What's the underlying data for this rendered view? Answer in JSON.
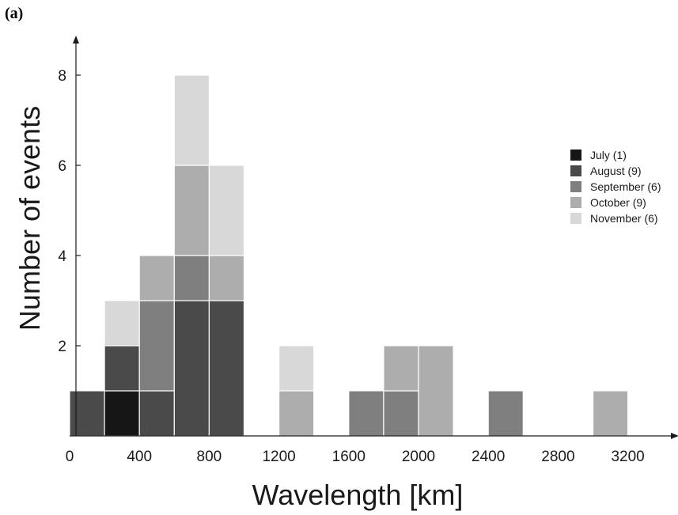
{
  "panel_label": "(a)",
  "chart_data": {
    "type": "bar",
    "stacked": true,
    "title": "",
    "xlabel": "Wavelength [km]",
    "ylabel": "Number of events",
    "xlim": [
      0,
      3400
    ],
    "ylim": [
      0,
      8.6
    ],
    "bin_width": 200,
    "x_ticks": [
      0,
      400,
      800,
      1200,
      1600,
      2000,
      2400,
      2800,
      3200
    ],
    "y_ticks": [
      2,
      4,
      6,
      8
    ],
    "bin_starts": [
      0,
      200,
      400,
      600,
      800,
      1200,
      1600,
      1800,
      2000,
      2400,
      3000
    ],
    "series": [
      {
        "name": "July (1)",
        "color": "#161616",
        "values": [
          0,
          1,
          0,
          0,
          0,
          0,
          0,
          0,
          0,
          0,
          0
        ]
      },
      {
        "name": "August (9)",
        "color": "#4a4a4a",
        "values": [
          1,
          1,
          1,
          3,
          3,
          0,
          0,
          0,
          0,
          0,
          0
        ]
      },
      {
        "name": "September (6)",
        "color": "#7f7f7f",
        "values": [
          0,
          0,
          2,
          1,
          0,
          0,
          1,
          1,
          0,
          1,
          0
        ]
      },
      {
        "name": "October (9)",
        "color": "#adadad",
        "values": [
          0,
          0,
          1,
          2,
          1,
          1,
          0,
          1,
          2,
          0,
          1
        ]
      },
      {
        "name": "November (6)",
        "color": "#d8d8d8",
        "values": [
          0,
          1,
          0,
          2,
          2,
          1,
          0,
          0,
          0,
          0,
          0
        ]
      }
    ],
    "legend_position": "right"
  }
}
